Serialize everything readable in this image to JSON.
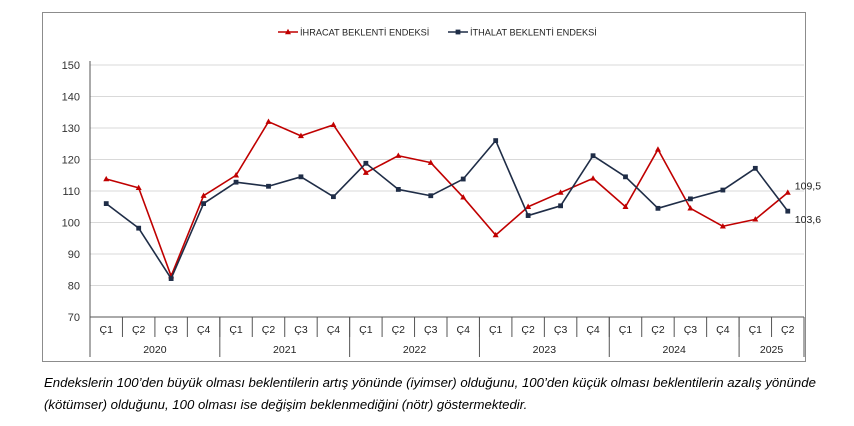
{
  "chart_data": {
    "type": "line",
    "ylim": [
      70,
      150
    ],
    "yticks": [
      70,
      80,
      90,
      100,
      110,
      120,
      130,
      140,
      150
    ],
    "categories": [
      "Ç1",
      "Ç2",
      "Ç3",
      "Ç4",
      "Ç1",
      "Ç2",
      "Ç3",
      "Ç4",
      "Ç1",
      "Ç2",
      "Ç3",
      "Ç4",
      "Ç1",
      "Ç2",
      "Ç3",
      "Ç4",
      "Ç1",
      "Ç2",
      "Ç3",
      "Ç4",
      "Ç1",
      "Ç2"
    ],
    "years": [
      {
        "label": "2020",
        "count": 4
      },
      {
        "label": "2021",
        "count": 4
      },
      {
        "label": "2022",
        "count": 4
      },
      {
        "label": "2023",
        "count": 4
      },
      {
        "label": "2024",
        "count": 4
      },
      {
        "label": "2025",
        "count": 2
      }
    ],
    "series": [
      {
        "name": "İHRACAT BEKLENTİ ENDEKSİ",
        "color": "#c00000",
        "marker": "triangle",
        "values": [
          113.8,
          111.0,
          83.0,
          108.5,
          115.0,
          132.0,
          127.5,
          131.0,
          115.8,
          121.2,
          119.0,
          108.0,
          96.0,
          105.0,
          109.5,
          114.0,
          105.0,
          123.2,
          104.5,
          98.8,
          101.0,
          109.5
        ],
        "end_label": "109,5"
      },
      {
        "name": "İTHALAT BEKLENTİ ENDEKSİ",
        "color": "#1f2d47",
        "marker": "square",
        "values": [
          106.0,
          98.2,
          82.2,
          106.0,
          112.8,
          111.5,
          114.5,
          108.2,
          118.8,
          110.5,
          108.5,
          113.8,
          126.0,
          102.2,
          105.3,
          121.2,
          114.5,
          104.5,
          107.5,
          110.3,
          117.2,
          103.6
        ],
        "end_label": "103,6"
      }
    ],
    "grid": "horizontal"
  },
  "caption": "Endekslerin 100’den büyük olması beklentilerin artış yönünde (iyimser) olduğunu, 100’den küçük olması beklentilerin azalış yönünde (kötümser) olduğunu, 100 olması ise değişim beklenmediğini (nötr) göstermektedir."
}
